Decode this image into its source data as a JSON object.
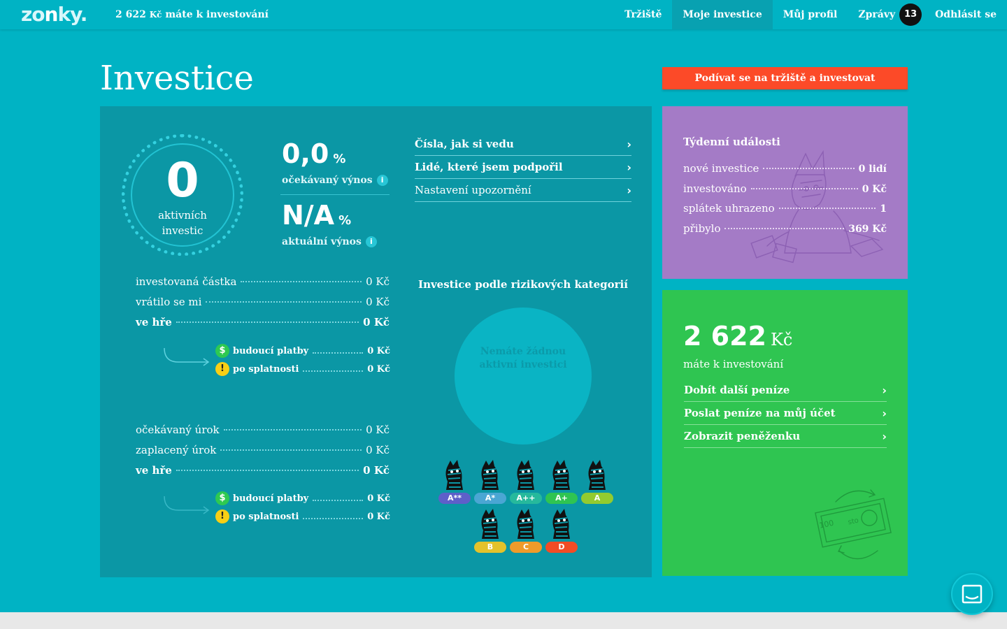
{
  "header": {
    "logo_pre": "zo",
    "logo_o": "n",
    "logo_post": "ky.",
    "balance_amount": "2 622",
    "balance_currency": "Kč",
    "balance_text": "máte k investování",
    "nav": {
      "market": "Tržiště",
      "my_investments": "Moje investice",
      "my_profile": "Můj profil",
      "messages": "Zprávy",
      "messages_count": "13",
      "logout": "Odhlásit se"
    }
  },
  "page": {
    "title": "Investice",
    "cta_label": "Podívat se na tržiště a investovat"
  },
  "summary": {
    "active_count": "0",
    "active_label_1": "aktivních",
    "active_label_2": "investic",
    "expected_yield_value": "0,0",
    "expected_yield_unit": "%",
    "expected_yield_label": "očekávaný výnos",
    "current_yield_value": "N/A",
    "current_yield_unit": "%",
    "current_yield_label": "aktuální výnos",
    "info_glyph": "i"
  },
  "links": [
    {
      "label": "Čísla, jak si vedu"
    },
    {
      "label": "Lidé, které jsem podpořil"
    },
    {
      "label": "Nastavení upozornění"
    }
  ],
  "principal": {
    "invested_label": "investovaná částka",
    "invested_value": "0 Kč",
    "returned_label": "vrátilo se mi",
    "returned_value": "0 Kč",
    "in_play_label": "ve hře",
    "in_play_value": "0 Kč",
    "future_label": "budoucí platby",
    "future_value": "0 Kč",
    "overdue_label": "po splatnosti",
    "overdue_value": "0 Kč"
  },
  "interest": {
    "expected_label": "očekávaný úrok",
    "expected_value": "0 Kč",
    "paid_label": "zaplacený úrok",
    "paid_value": "0 Kč",
    "in_play_label": "ve hře",
    "in_play_value": "0 Kč",
    "future_label": "budoucí platby",
    "future_value": "0 Kč",
    "overdue_label": "po splatnosti",
    "overdue_value": "0 Kč"
  },
  "icons": {
    "money": "$",
    "warn": "!",
    "chevron": "›"
  },
  "risk_chart": {
    "title": "Investice podle rizikových kategorií",
    "empty_1": "Nemáte žádnou",
    "empty_2": "aktivní investici",
    "ratings": [
      {
        "label": "A**",
        "color": "#5e5fc9"
      },
      {
        "label": "A*",
        "color": "#4aa6d3"
      },
      {
        "label": "A++",
        "color": "#26b99c"
      },
      {
        "label": "A+",
        "color": "#2fc451"
      },
      {
        "label": "A",
        "color": "#93cb2f"
      },
      {
        "label": "B",
        "color": "#e4c22b"
      },
      {
        "label": "C",
        "color": "#ef9b2a"
      },
      {
        "label": "D",
        "color": "#f24c25"
      }
    ]
  },
  "weekly": {
    "title": "Týdenní události",
    "rows": [
      {
        "label": "nové investice",
        "value": "0 lidí"
      },
      {
        "label": "investováno",
        "value": "0 Kč"
      },
      {
        "label": "splátek uhrazeno",
        "value": "1"
      },
      {
        "label": "přibylo",
        "value": "369 Kč"
      }
    ]
  },
  "wallet": {
    "amount": "2 622",
    "currency": "Kč",
    "label": "máte k investování",
    "links": [
      {
        "label": "Dobít další peníze"
      },
      {
        "label": "Poslat peníze na můj účet"
      },
      {
        "label": "Zobrazit peněženku"
      }
    ],
    "note_100": "100",
    "note_sto": "sto"
  }
}
